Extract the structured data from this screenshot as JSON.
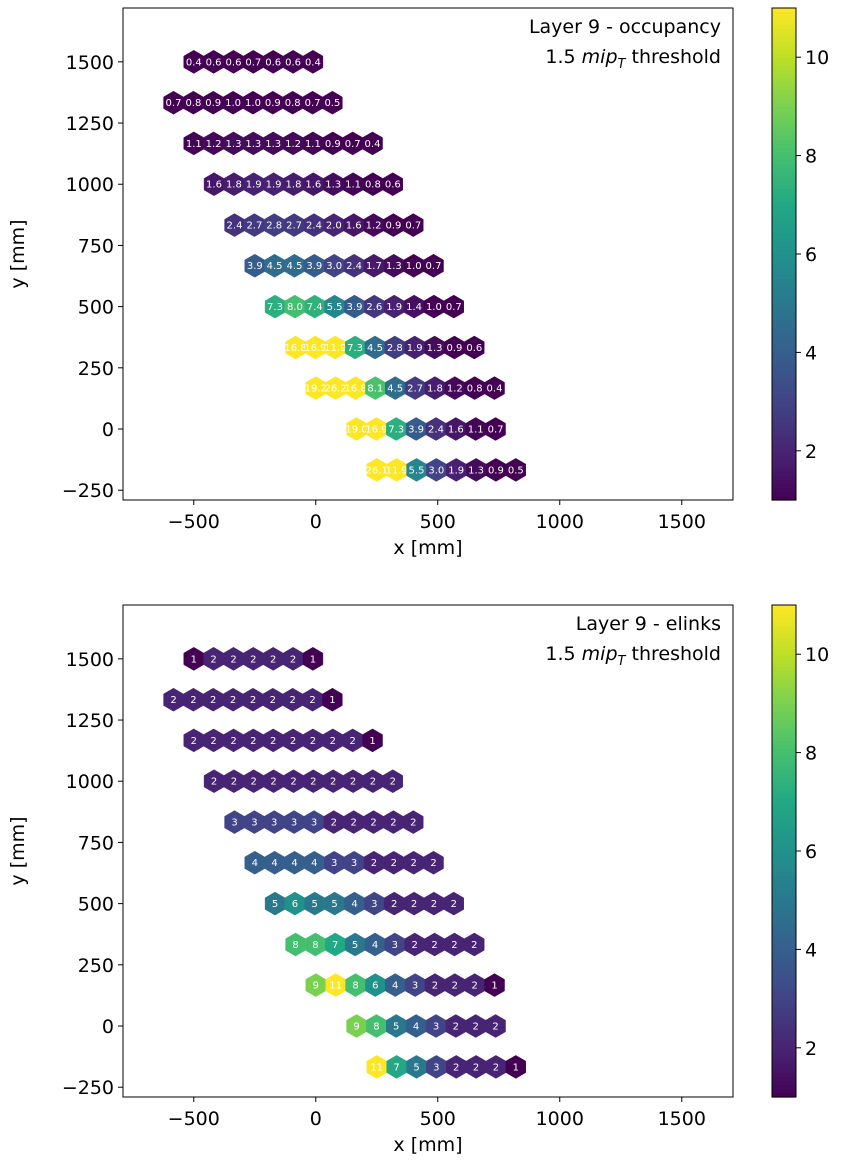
{
  "chart_data": [
    {
      "type": "heatmap",
      "subtype": "hexagonal",
      "title_line1": "Layer 9 - occupancy",
      "title_line2_math": "mip",
      "title_line2_sub": "T",
      "title_line2_prefix": "1.5 ",
      "title_line2_suffix": " threshold",
      "xlabel": "x [mm]",
      "ylabel": "y [mm]",
      "xlim": [
        -790,
        1710
      ],
      "ylim": [
        -290,
        1720
      ],
      "xticks": [
        -500,
        0,
        500,
        1000,
        1500
      ],
      "yticks": [
        -250,
        0,
        250,
        500,
        750,
        1000,
        1250,
        1500
      ],
      "colorbar": {
        "vmin": 1.0,
        "vmax": 11.0,
        "ticks": [
          2,
          4,
          6,
          8,
          10
        ],
        "colormap": "viridis"
      },
      "rows": [
        {
          "y": 1500,
          "x0": -500,
          "values": [
            "0.4",
            "0.6",
            "0.6",
            "0.7",
            "0.6",
            "0.6",
            "0.4"
          ]
        },
        {
          "y": 1333,
          "x0": -583,
          "values": [
            "0.7",
            "0.8",
            "0.9",
            "1.0",
            "1.0",
            "0.9",
            "0.8",
            "0.7",
            "0.5"
          ]
        },
        {
          "y": 1167,
          "x0": -500,
          "values": [
            "1.1",
            "1.2",
            "1.3",
            "1.3",
            "1.3",
            "1.2",
            "1.1",
            "0.9",
            "0.7",
            "0.4"
          ]
        },
        {
          "y": 1000,
          "x0": -417,
          "values": [
            "1.6",
            "1.8",
            "1.9",
            "1.9",
            "1.8",
            "1.6",
            "1.3",
            "1.1",
            "0.8",
            "0.6"
          ]
        },
        {
          "y": 833,
          "x0": -333,
          "values": [
            "2.4",
            "2.7",
            "2.8",
            "2.7",
            "2.4",
            "2.0",
            "1.6",
            "1.2",
            "0.9",
            "0.7"
          ]
        },
        {
          "y": 667,
          "x0": -250,
          "values": [
            "3.9",
            "4.5",
            "4.5",
            "3.9",
            "3.0",
            "2.4",
            "1.7",
            "1.3",
            "1.0",
            "0.7"
          ]
        },
        {
          "y": 500,
          "x0": -167,
          "values": [
            "7.3",
            "8.0",
            "7.4",
            "5.5",
            "3.9",
            "2.6",
            "1.9",
            "1.4",
            "1.0",
            "0.7"
          ]
        },
        {
          "y": 333,
          "x0": -83,
          "values": [
            "16.8",
            "16.9",
            "11.9",
            "7.3",
            "4.5",
            "2.8",
            "1.9",
            "1.3",
            "0.9",
            "0.6"
          ]
        },
        {
          "y": 167,
          "x0": 0,
          "values": [
            "19.2",
            "26.2",
            "16.8",
            "8.1",
            "4.5",
            "2.7",
            "1.8",
            "1.2",
            "0.8",
            "0.4"
          ]
        },
        {
          "y": 0,
          "x0": 167,
          "values": [
            "19.0",
            "16.9",
            "7.3",
            "3.9",
            "2.4",
            "1.6",
            "1.1",
            "0.7"
          ]
        },
        {
          "y": -167,
          "x0": 250,
          "values": [
            "26.1",
            "11.9",
            "5.5",
            "3.0",
            "1.9",
            "1.3",
            "0.9",
            "0.5"
          ]
        }
      ]
    },
    {
      "type": "heatmap",
      "subtype": "hexagonal",
      "title_line1": "Layer 9 - elinks",
      "title_line2_math": "mip",
      "title_line2_sub": "T",
      "title_line2_prefix": "1.5 ",
      "title_line2_suffix": " threshold",
      "xlabel": "x [mm]",
      "ylabel": "y [mm]",
      "xlim": [
        -790,
        1710
      ],
      "ylim": [
        -290,
        1720
      ],
      "xticks": [
        -500,
        0,
        500,
        1000,
        1500
      ],
      "yticks": [
        -250,
        0,
        250,
        500,
        750,
        1000,
        1250,
        1500
      ],
      "colorbar": {
        "vmin": 1.0,
        "vmax": 11.0,
        "ticks": [
          2,
          4,
          6,
          8,
          10
        ],
        "colormap": "viridis"
      },
      "rows": [
        {
          "y": 1500,
          "x0": -500,
          "values": [
            "1",
            "2",
            "2",
            "2",
            "2",
            "2",
            "1"
          ]
        },
        {
          "y": 1333,
          "x0": -583,
          "values": [
            "2",
            "2",
            "2",
            "2",
            "2",
            "2",
            "2",
            "2",
            "1"
          ]
        },
        {
          "y": 1167,
          "x0": -500,
          "values": [
            "2",
            "2",
            "2",
            "2",
            "2",
            "2",
            "2",
            "2",
            "2",
            "1"
          ]
        },
        {
          "y": 1000,
          "x0": -417,
          "values": [
            "2",
            "2",
            "2",
            "2",
            "2",
            "2",
            "2",
            "2",
            "2",
            "2"
          ]
        },
        {
          "y": 833,
          "x0": -333,
          "values": [
            "3",
            "3",
            "3",
            "3",
            "3",
            "2",
            "2",
            "2",
            "2",
            "2"
          ]
        },
        {
          "y": 667,
          "x0": -250,
          "values": [
            "4",
            "4",
            "4",
            "4",
            "3",
            "3",
            "2",
            "2",
            "2",
            "2"
          ]
        },
        {
          "y": 500,
          "x0": -167,
          "values": [
            "5",
            "6",
            "5",
            "5",
            "4",
            "3",
            "2",
            "2",
            "2",
            "2"
          ]
        },
        {
          "y": 333,
          "x0": -83,
          "values": [
            "8",
            "8",
            "7",
            "5",
            "4",
            "3",
            "2",
            "2",
            "2",
            "2"
          ]
        },
        {
          "y": 167,
          "x0": 0,
          "values": [
            "9",
            "11",
            "8",
            "6",
            "4",
            "3",
            "2",
            "2",
            "2",
            "1"
          ]
        },
        {
          "y": 0,
          "x0": 167,
          "values": [
            "9",
            "8",
            "5",
            "4",
            "3",
            "2",
            "2",
            "2"
          ]
        },
        {
          "y": -167,
          "x0": 250,
          "values": [
            "11",
            "7",
            "5",
            "3",
            "2",
            "2",
            "2",
            "1"
          ]
        }
      ]
    }
  ]
}
